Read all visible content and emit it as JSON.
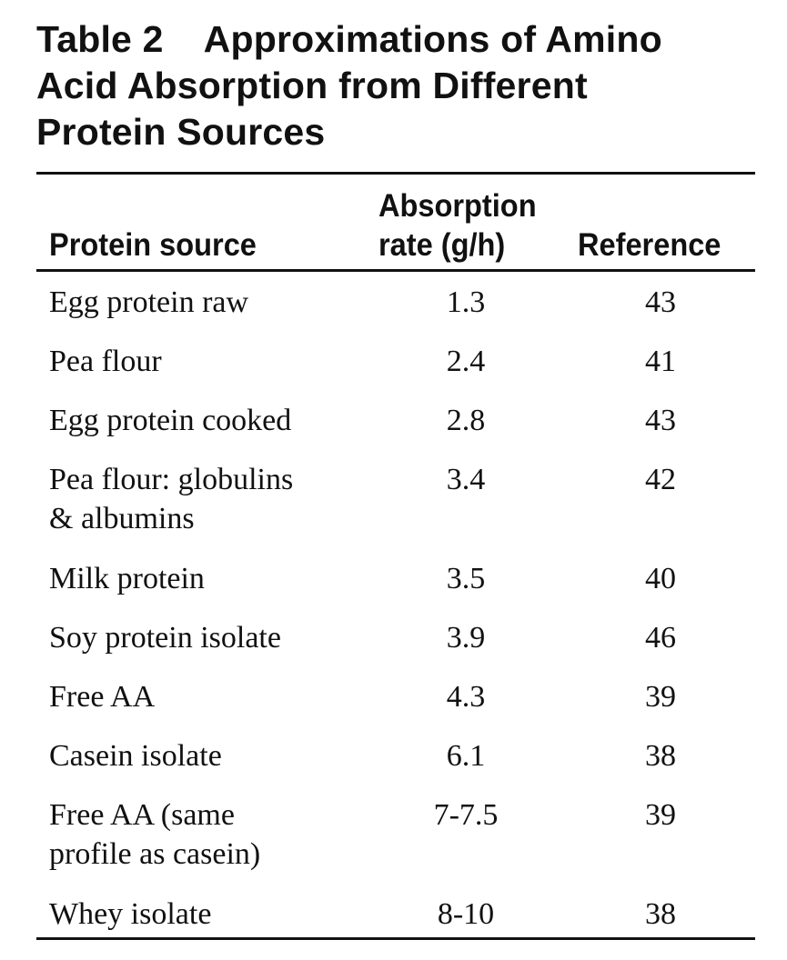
{
  "table": {
    "label": "Table 2",
    "title_line1": "Approximations of Amino",
    "title_line2": "Acid Absorption from Different",
    "title_line3": "Protein Sources",
    "headers": {
      "source": "Protein source",
      "rate_line1": "Absorption",
      "rate_line2": "rate (g/h)",
      "reference": "Reference"
    },
    "rows": [
      {
        "source_lines": [
          "Egg protein raw"
        ],
        "rate": "1.3",
        "reference": "43"
      },
      {
        "source_lines": [
          "Pea flour"
        ],
        "rate": "2.4",
        "reference": "41"
      },
      {
        "source_lines": [
          "Egg protein cooked"
        ],
        "rate": "2.8",
        "reference": "43"
      },
      {
        "source_lines": [
          "Pea flour: globulins",
          "& albumins"
        ],
        "rate": "3.4",
        "reference": "42"
      },
      {
        "source_lines": [
          "Milk protein"
        ],
        "rate": "3.5",
        "reference": "40"
      },
      {
        "source_lines": [
          "Soy protein isolate"
        ],
        "rate": "3.9",
        "reference": "46"
      },
      {
        "source_lines": [
          "Free AA"
        ],
        "rate": "4.3",
        "reference": "39"
      },
      {
        "source_lines": [
          "Casein isolate"
        ],
        "rate": "6.1",
        "reference": "38"
      },
      {
        "source_lines": [
          "Free AA (same",
          "profile as casein)"
        ],
        "rate": "7-7.5",
        "reference": "39"
      },
      {
        "source_lines": [
          "Whey isolate"
        ],
        "rate": "8-10",
        "reference": "38"
      }
    ]
  }
}
